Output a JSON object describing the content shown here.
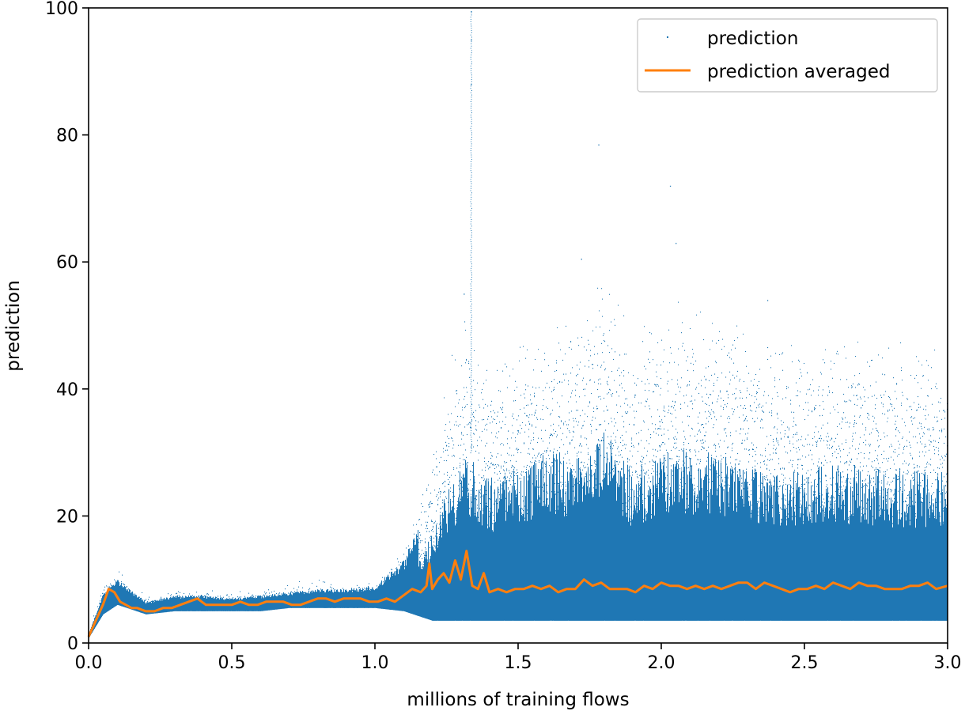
{
  "chart_data": {
    "type": "scatter",
    "title": "",
    "xlabel": "millions of training flows",
    "ylabel": "prediction",
    "xlim": [
      0.0,
      3.0
    ],
    "ylim": [
      0,
      100
    ],
    "x_ticks": [
      0.0,
      0.5,
      1.0,
      1.5,
      2.0,
      2.5,
      3.0
    ],
    "x_tick_labels": [
      "0.0",
      "0.5",
      "1.0",
      "1.5",
      "2.0",
      "2.5",
      "3.0"
    ],
    "y_ticks": [
      0,
      20,
      40,
      60,
      80,
      100
    ],
    "y_tick_labels": [
      "0",
      "20",
      "40",
      "60",
      "80",
      "100"
    ],
    "grid": false,
    "legend": {
      "position": "top-right",
      "entries": [
        "prediction",
        "prediction averaged"
      ]
    },
    "colors": {
      "prediction": "#1f77b4",
      "averaged": "#ff7f0e"
    },
    "series": [
      {
        "name": "prediction",
        "kind": "scatter-band",
        "x": [
          0.0,
          0.05,
          0.1,
          0.2,
          0.3,
          0.4,
          0.5,
          0.6,
          0.7,
          0.8,
          0.9,
          1.0,
          1.1,
          1.2,
          1.3,
          1.4,
          1.5,
          1.6,
          1.7,
          1.8,
          1.9,
          2.0,
          2.2,
          2.4,
          2.6,
          2.8,
          3.0
        ],
        "low": [
          0.8,
          4.5,
          6.0,
          4.5,
          5.0,
          5.0,
          5.0,
          5.0,
          5.5,
          5.5,
          5.5,
          5.5,
          5.0,
          3.5,
          3.5,
          3.5,
          3.5,
          3.5,
          3.5,
          3.5,
          3.5,
          3.5,
          3.5,
          3.5,
          3.5,
          3.5,
          3.5
        ],
        "high": [
          1.5,
          8.0,
          10.0,
          6.5,
          7.5,
          7.5,
          7.0,
          7.5,
          8.0,
          8.5,
          8.5,
          9.0,
          13.0,
          25.0,
          45.0,
          38.0,
          42.0,
          44.0,
          45.0,
          50.0,
          40.0,
          45.0,
          45.0,
          40.0,
          42.0,
          40.0,
          40.0
        ],
        "outliers_x": [
          1.335,
          1.335,
          1.335,
          1.78,
          2.03,
          2.05,
          1.72,
          1.31,
          2.37
        ],
        "outliers_y": [
          99.5,
          95.0,
          88.0,
          78.5,
          72.0,
          63.0,
          60.5,
          55.0,
          54.0
        ]
      },
      {
        "name": "prediction averaged",
        "kind": "line",
        "x": [
          0.0,
          0.02,
          0.05,
          0.07,
          0.09,
          0.11,
          0.13,
          0.15,
          0.17,
          0.2,
          0.23,
          0.26,
          0.29,
          0.32,
          0.35,
          0.38,
          0.41,
          0.44,
          0.47,
          0.5,
          0.53,
          0.56,
          0.59,
          0.62,
          0.65,
          0.68,
          0.71,
          0.74,
          0.77,
          0.8,
          0.83,
          0.86,
          0.89,
          0.92,
          0.95,
          0.98,
          1.01,
          1.04,
          1.07,
          1.1,
          1.13,
          1.16,
          1.18,
          1.19,
          1.2,
          1.22,
          1.24,
          1.26,
          1.28,
          1.3,
          1.32,
          1.34,
          1.36,
          1.38,
          1.4,
          1.43,
          1.46,
          1.49,
          1.52,
          1.55,
          1.58,
          1.61,
          1.64,
          1.67,
          1.7,
          1.73,
          1.76,
          1.79,
          1.82,
          1.85,
          1.88,
          1.91,
          1.94,
          1.97,
          2.0,
          2.03,
          2.06,
          2.09,
          2.12,
          2.15,
          2.18,
          2.21,
          2.24,
          2.27,
          2.3,
          2.33,
          2.36,
          2.39,
          2.42,
          2.45,
          2.48,
          2.51,
          2.54,
          2.57,
          2.6,
          2.63,
          2.66,
          2.69,
          2.72,
          2.75,
          2.78,
          2.81,
          2.84,
          2.87,
          2.9,
          2.93,
          2.96,
          3.0
        ],
        "y": [
          1.0,
          3.0,
          6.0,
          8.5,
          8.0,
          6.5,
          6.0,
          5.5,
          5.5,
          5.0,
          5.0,
          5.5,
          5.5,
          6.0,
          6.5,
          7.0,
          6.0,
          6.0,
          6.0,
          6.0,
          6.5,
          6.0,
          6.0,
          6.5,
          6.5,
          6.5,
          6.0,
          6.0,
          6.5,
          7.0,
          7.0,
          6.5,
          7.0,
          7.0,
          7.0,
          6.5,
          6.5,
          7.0,
          6.5,
          7.5,
          8.5,
          8.0,
          9.0,
          12.5,
          8.5,
          10.0,
          11.0,
          9.5,
          13.0,
          10.0,
          14.5,
          9.0,
          8.5,
          11.0,
          8.0,
          8.5,
          8.0,
          8.5,
          8.5,
          9.0,
          8.5,
          9.0,
          8.0,
          8.5,
          8.5,
          10.0,
          9.0,
          9.5,
          8.5,
          8.5,
          8.5,
          8.0,
          9.0,
          8.5,
          9.5,
          9.0,
          9.0,
          8.5,
          9.0,
          8.5,
          9.0,
          8.5,
          9.0,
          9.5,
          9.5,
          8.5,
          9.5,
          9.0,
          8.5,
          8.0,
          8.5,
          8.5,
          9.0,
          8.5,
          9.5,
          9.0,
          8.5,
          9.5,
          9.0,
          9.0,
          8.5,
          8.5,
          8.5,
          9.0,
          9.0,
          9.5,
          8.5,
          9.0
        ]
      }
    ]
  }
}
